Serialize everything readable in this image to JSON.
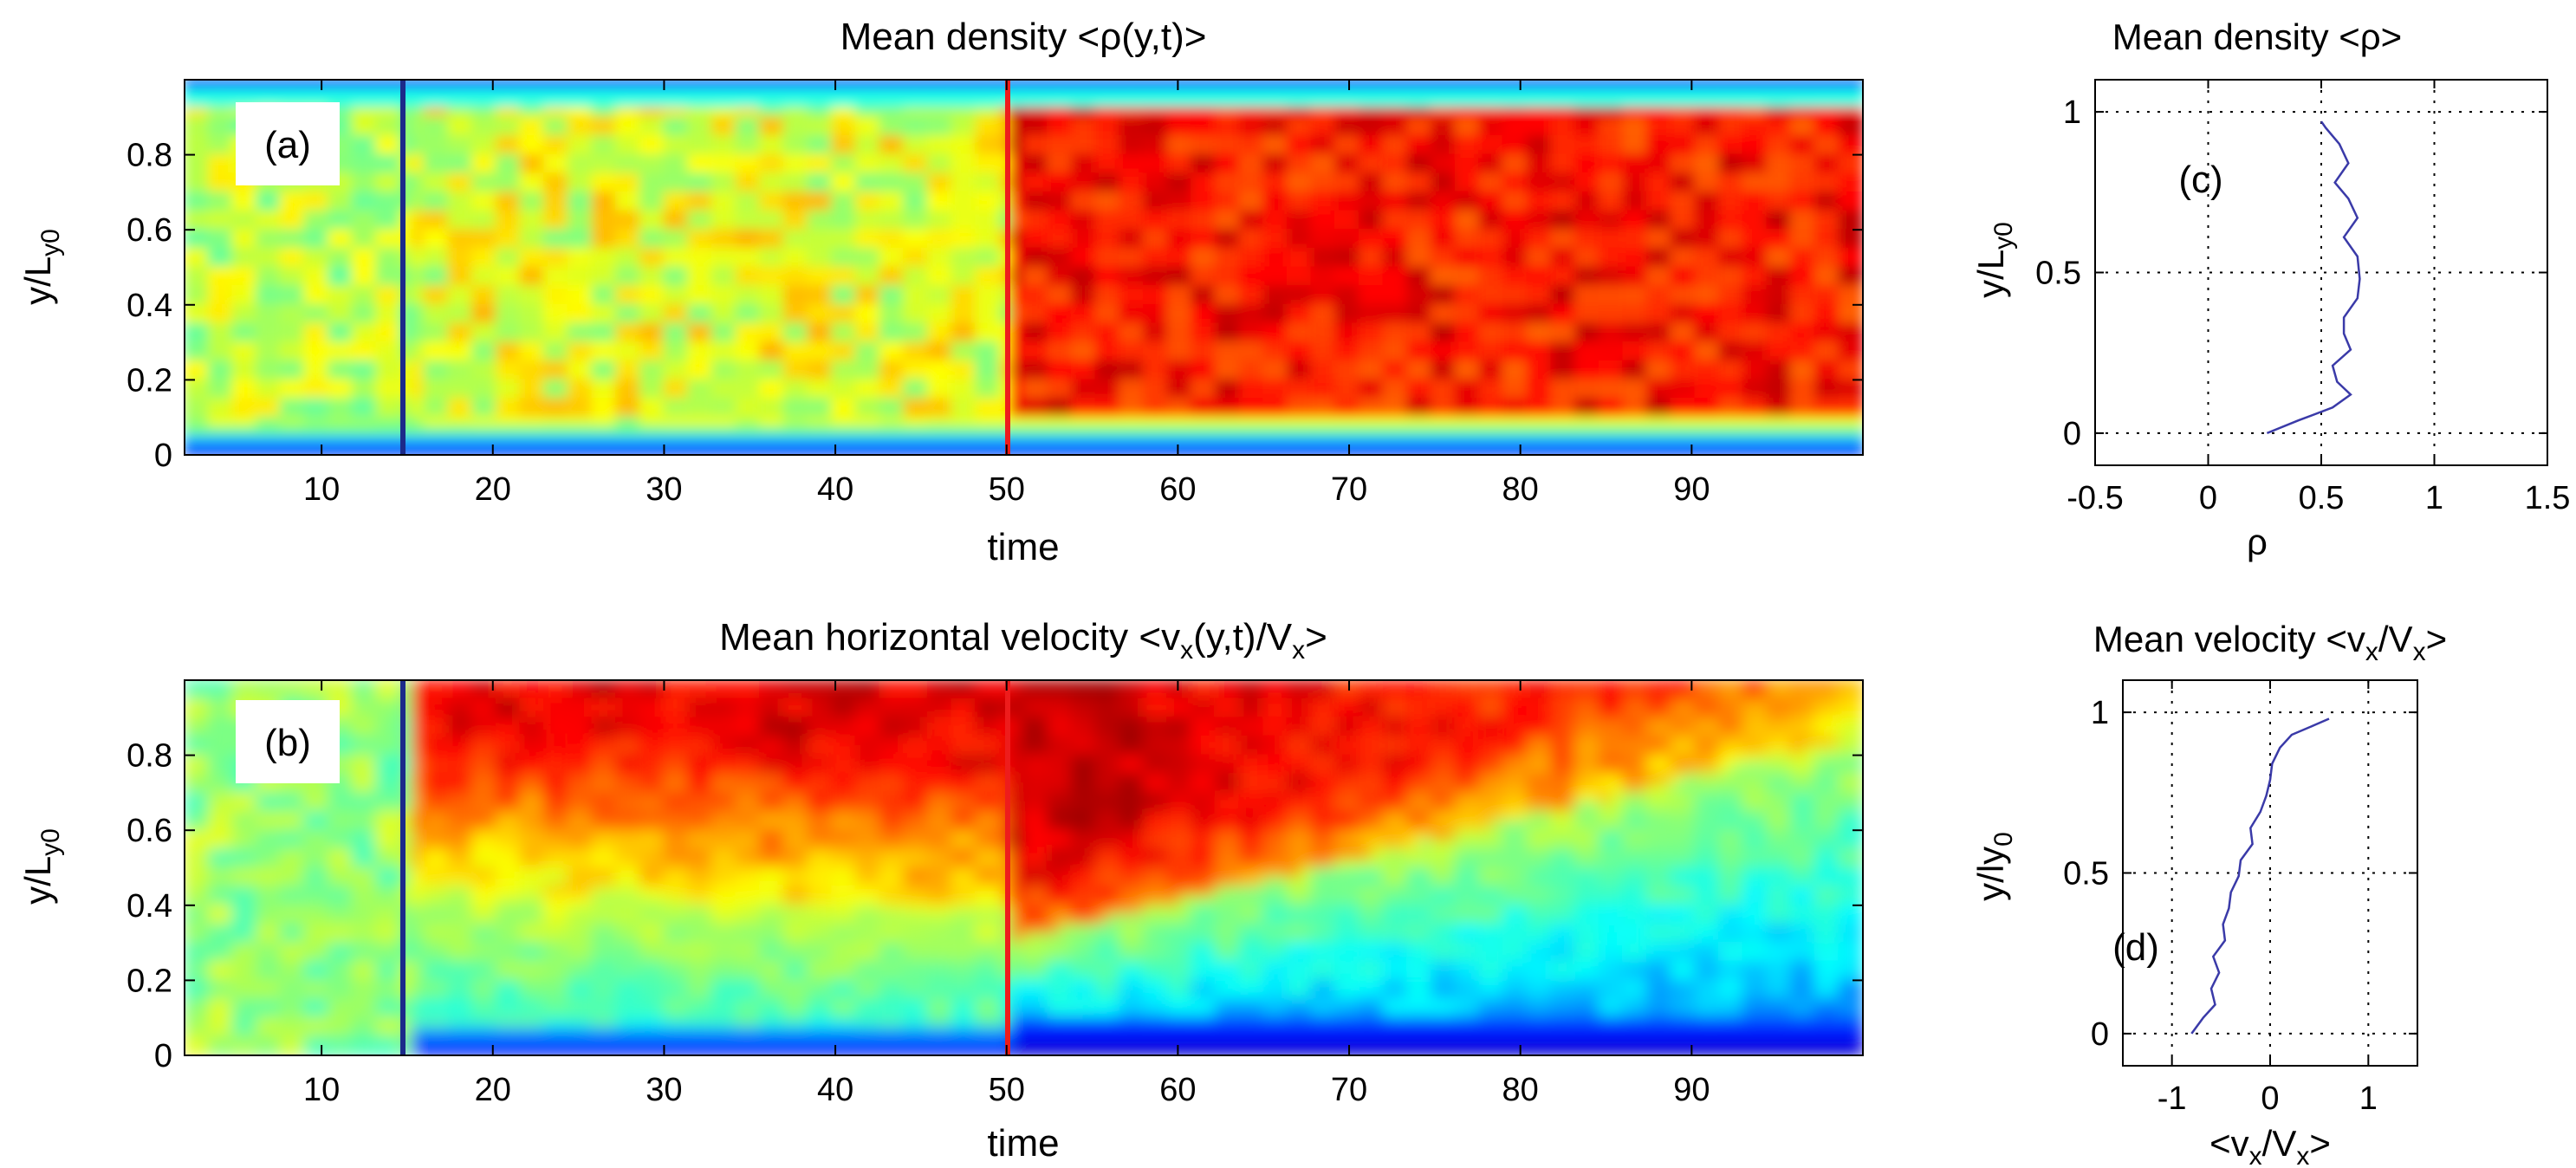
{
  "chart_data": [
    {
      "id": "a",
      "type": "heatmap",
      "title": "Mean density <ρ(y,t)>",
      "panel_label": "(a)",
      "xlabel": "time",
      "ylabel": "y/L_y0",
      "xlim": [
        2,
        100
      ],
      "ylim": [
        0,
        1
      ],
      "xticks": [
        10,
        20,
        30,
        40,
        50,
        60,
        70,
        80,
        90
      ],
      "yticks": [
        0,
        0.2,
        0.4,
        0.6,
        0.8
      ],
      "colormap": "jet",
      "markers": [
        {
          "x": 15,
          "color": "#1c2a8a"
        },
        {
          "x": 50,
          "color": "#ee1c1c"
        }
      ],
      "description_values": {
        "regions": [
          {
            "t_range": [
              2,
              15
            ],
            "interior_level": 0.55
          },
          {
            "t_range": [
              15,
              50
            ],
            "interior_level": 0.62
          },
          {
            "t_range": [
              50,
              100
            ],
            "interior_level": 0.85
          }
        ],
        "boundary_level": 0.2
      }
    },
    {
      "id": "b",
      "type": "heatmap",
      "title": "Mean horizontal velocity <v_x(y,t)/V_x>",
      "panel_label": "(b)",
      "xlabel": "time",
      "ylabel": "y/L_y0",
      "xlim": [
        2,
        100
      ],
      "ylim": [
        0,
        1
      ],
      "xticks": [
        10,
        20,
        30,
        40,
        50,
        60,
        70,
        80,
        90
      ],
      "yticks": [
        0,
        0.2,
        0.4,
        0.6,
        0.8
      ],
      "colormap": "jet",
      "markers": [
        {
          "x": 15,
          "color": "#1c2a8a"
        },
        {
          "x": 50,
          "color": "#ee1c1c"
        }
      ]
    },
    {
      "id": "c",
      "type": "line",
      "title": "Mean density <ρ>",
      "panel_label": "(c)",
      "xlabel": "ρ",
      "ylabel": "y/L_y0",
      "xlim": [
        -0.5,
        1.5
      ],
      "ylim": [
        -0.1,
        1.1
      ],
      "xticks": [
        -0.5,
        0,
        0.5,
        1,
        1.5
      ],
      "xtick_labels": [
        "-0.5",
        "0",
        "0.5",
        "1",
        "1.5"
      ],
      "yticks": [
        0,
        0.5,
        1
      ],
      "yticks_labels": [
        "0",
        "0.5",
        "1"
      ],
      "grid": true,
      "series": [
        {
          "name": "rho",
          "color": "#3a3aa8",
          "points": [
            [
              0.26,
              0.0
            ],
            [
              0.4,
              0.04
            ],
            [
              0.55,
              0.08
            ],
            [
              0.63,
              0.12
            ],
            [
              0.57,
              0.16
            ],
            [
              0.55,
              0.21
            ],
            [
              0.63,
              0.26
            ],
            [
              0.6,
              0.31
            ],
            [
              0.6,
              0.36
            ],
            [
              0.66,
              0.42
            ],
            [
              0.67,
              0.48
            ],
            [
              0.66,
              0.55
            ],
            [
              0.6,
              0.61
            ],
            [
              0.66,
              0.67
            ],
            [
              0.62,
              0.73
            ],
            [
              0.56,
              0.78
            ],
            [
              0.62,
              0.84
            ],
            [
              0.58,
              0.9
            ],
            [
              0.52,
              0.95
            ],
            [
              0.5,
              0.97
            ]
          ]
        }
      ]
    },
    {
      "id": "d",
      "type": "line",
      "title": "Mean velocity <v_x/V_x>",
      "panel_label": "(d)",
      "xlabel": "<v_x/V_x>",
      "ylabel": "y/ly_0",
      "xlim": [
        -1.5,
        1.5
      ],
      "ylim": [
        -0.1,
        1.1
      ],
      "xticks": [
        -1,
        0,
        1
      ],
      "xtick_labels": [
        "-1",
        "0",
        "1"
      ],
      "yticks": [
        0,
        0.5,
        1
      ],
      "yticks_labels": [
        "0",
        "0.5",
        "1"
      ],
      "grid": true,
      "series": [
        {
          "name": "vx",
          "color": "#3a3aa8",
          "points": [
            [
              -0.8,
              0.0
            ],
            [
              -0.68,
              0.05
            ],
            [
              -0.56,
              0.09
            ],
            [
              -0.6,
              0.14
            ],
            [
              -0.52,
              0.19
            ],
            [
              -0.58,
              0.24
            ],
            [
              -0.46,
              0.29
            ],
            [
              -0.48,
              0.34
            ],
            [
              -0.42,
              0.39
            ],
            [
              -0.4,
              0.44
            ],
            [
              -0.32,
              0.49
            ],
            [
              -0.3,
              0.54
            ],
            [
              -0.18,
              0.59
            ],
            [
              -0.2,
              0.64
            ],
            [
              -0.1,
              0.69
            ],
            [
              -0.04,
              0.74
            ],
            [
              0.0,
              0.79
            ],
            [
              0.02,
              0.84
            ],
            [
              0.1,
              0.89
            ],
            [
              0.22,
              0.93
            ],
            [
              0.45,
              0.96
            ],
            [
              0.6,
              0.98
            ]
          ]
        }
      ]
    }
  ]
}
